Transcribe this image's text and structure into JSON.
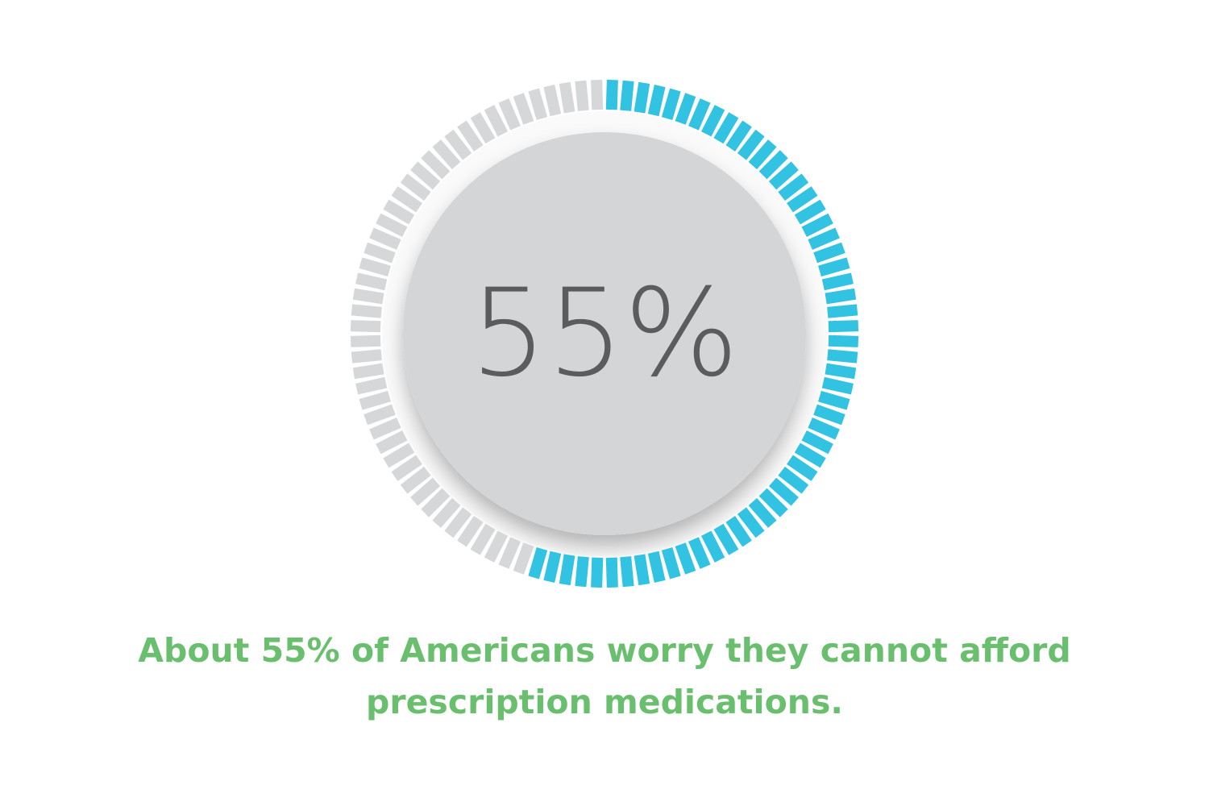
{
  "chart_data": {
    "type": "gauge",
    "values": [
      55
    ],
    "value_labels": [
      "55%"
    ],
    "ylim": [
      0,
      100
    ],
    "color": "#33c3e2",
    "track_color": "#d6d7d9",
    "caption": "About 55% of Americans worry they cannot afford prescription medications."
  }
}
